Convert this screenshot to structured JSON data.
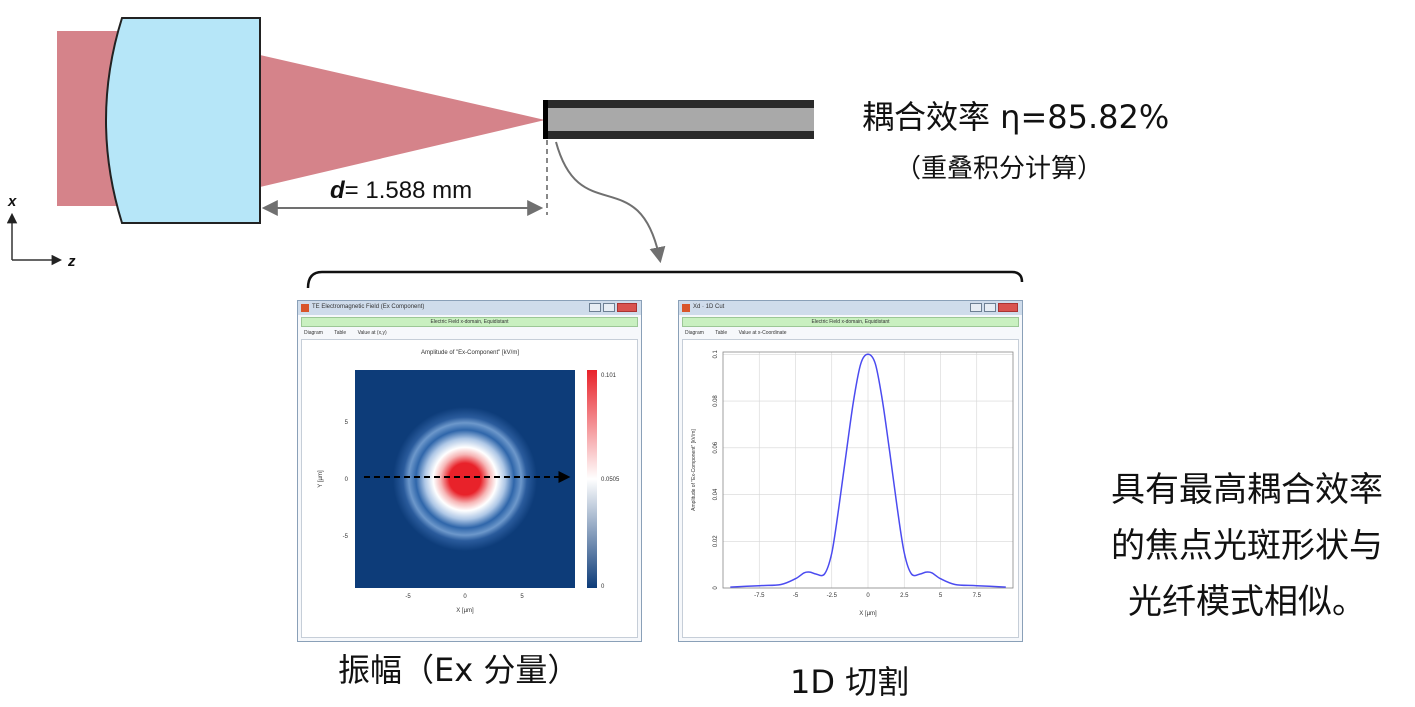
{
  "diagram": {
    "distance_label_italic": "d",
    "distance_label_rest": "= 1.588 mm",
    "axis_x": "x",
    "axis_z": "z"
  },
  "efficiency": {
    "text": "耦合效率 η=85.82%",
    "method": "（重叠积分计算）"
  },
  "left_window": {
    "title": "TE Electromagnetic Field (Ex Component)",
    "green_bar": "Electric Field x-domain, Equidistant",
    "menu": [
      "Diagram",
      "Table",
      "Value at (x,y)"
    ],
    "plot_title": "Amplitude of \"Ex-Component\"  [kV/m]",
    "x_axis_label": "X [µm]",
    "y_axis_label": "Y [µm]",
    "x_ticks": [
      "-5",
      "0",
      "5"
    ],
    "y_ticks": [
      "5",
      "0",
      "-5"
    ],
    "colorbar_ticks": [
      "0.101",
      "0.0505",
      "0"
    ],
    "colors": {
      "background": "#0d3c79",
      "peak": "#e8222a",
      "ring": "#ffffff"
    }
  },
  "right_window": {
    "title": "Xd · 1D Cut",
    "green_bar": "Electric Field x-domain, Equidistant",
    "menu": [
      "Diagram",
      "Table",
      "Value at x-Coordinate"
    ],
    "x_axis_label": "X [µm]",
    "y_axis_label": "Amplitude of \"Ex-Component\" [kV/m]",
    "x_ticks": [
      "-7.5",
      "-5",
      "-2.5",
      "0",
      "2.5",
      "5",
      "7.5"
    ],
    "y_ticks": [
      "0.1",
      "0.08",
      "0.06",
      "0.04",
      "0.02",
      "0"
    ]
  },
  "chart_data": {
    "type": "line",
    "x": [
      -9.5,
      -7.5,
      -6.0,
      -5.0,
      -4.4,
      -4.0,
      -3.6,
      -3.0,
      -2.5,
      -2.0,
      -1.5,
      -1.0,
      -0.5,
      0,
      0.5,
      1.0,
      1.5,
      2.0,
      2.5,
      3.0,
      3.6,
      4.0,
      4.4,
      5.0,
      6.0,
      7.5,
      9.5
    ],
    "y": [
      0.0004,
      0.001,
      0.0015,
      0.004,
      0.0065,
      0.0068,
      0.006,
      0.006,
      0.015,
      0.035,
      0.058,
      0.08,
      0.096,
      0.1,
      0.096,
      0.08,
      0.058,
      0.035,
      0.015,
      0.006,
      0.006,
      0.0068,
      0.0065,
      0.004,
      0.0015,
      0.001,
      0.0004
    ],
    "xlim": [
      -10,
      10
    ],
    "ylim": [
      0,
      0.101
    ],
    "grid": true,
    "color": "#4b4bf0"
  },
  "captions": {
    "amplitude": "振幅（Ex  分量）",
    "cut": "1D  切割"
  },
  "conclusion": [
    "具有最高耦合效率",
    "的焦点光斑形状与",
    "光纤模式相似。"
  ]
}
